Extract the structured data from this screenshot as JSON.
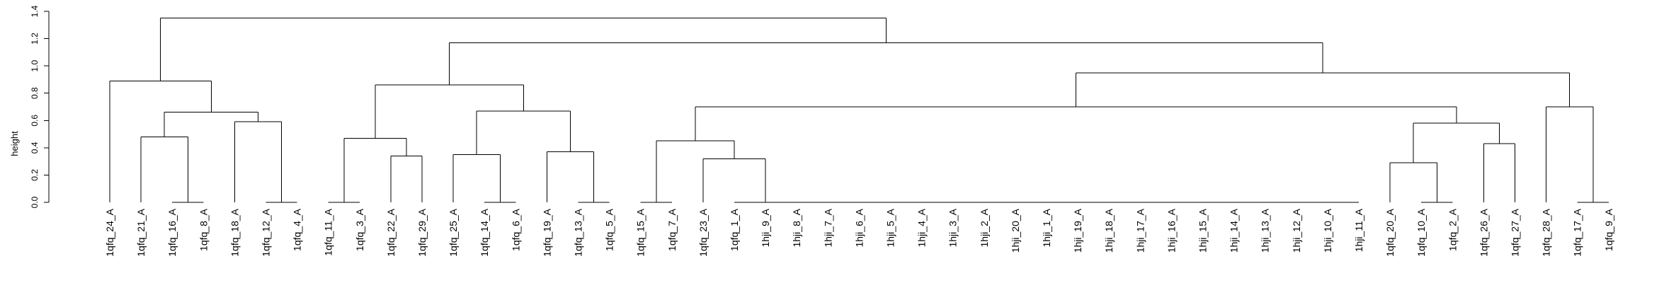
{
  "chart_data": {
    "type": "dendrogram",
    "title": "",
    "xlabel": "",
    "ylabel": "height",
    "ylim": [
      0,
      1.4
    ],
    "yticks": [
      "0.0",
      "0.2",
      "0.4",
      "0.6",
      "0.8",
      "1.0",
      "1.2",
      "1.4"
    ],
    "leaves": [
      "1qfq_24_A",
      "1qfq_21_A",
      "1qfq_16_A",
      "1qfq_8_A",
      "1qfq_18_A",
      "1qfq_12_A",
      "1qfq_4_A",
      "1qfq_11_A",
      "1qfq_3_A",
      "1qfq_22_A",
      "1qfq_29_A",
      "1qfq_25_A",
      "1qfq_14_A",
      "1qfq_6_A",
      "1qfq_19_A",
      "1qfq_13_A",
      "1qfq_5_A",
      "1qfq_15_A",
      "1qfq_7_A",
      "1qfq_23_A",
      "1qfq_1_A",
      "1hji_9_A",
      "1hji_8_A",
      "1hji_7_A",
      "1hji_6_A",
      "1hji_5_A",
      "1hji_4_A",
      "1hji_3_A",
      "1hji_2_A",
      "1hji_20_A",
      "1hji_1_A",
      "1hji_19_A",
      "1hji_18_A",
      "1hji_17_A",
      "1hji_16_A",
      "1hji_15_A",
      "1hji_14_A",
      "1hji_13_A",
      "1hji_12_A",
      "1hji_10_A",
      "1hji_11_A",
      "1qfq_20_A",
      "1qfq_10_A",
      "1qfq_2_A",
      "1qfq_26_A",
      "1qfq_27_A",
      "1qfq_28_A",
      "1qfq_17_A",
      "1qfq_9_A"
    ],
    "merges": [
      {
        "a": "1qfq_16_A",
        "b": "1qfq_8_A",
        "height": 0.0
      },
      {
        "a": "1qfq_21_A",
        "b": "M0",
        "height": 0.48
      },
      {
        "a": "1qfq_12_A",
        "b": "1qfq_4_A",
        "height": 0.0
      },
      {
        "a": "1qfq_18_A",
        "b": "M2",
        "height": 0.59
      },
      {
        "a": "M1",
        "b": "M3",
        "height": 0.66
      },
      {
        "a": "1qfq_24_A",
        "b": "M4",
        "height": 0.89
      },
      {
        "a": "1qfq_11_A",
        "b": "1qfq_3_A",
        "height": 0.0
      },
      {
        "a": "1qfq_22_A",
        "b": "1qfq_29_A",
        "height": 0.34
      },
      {
        "a": "M6",
        "b": "M7",
        "height": 0.47
      },
      {
        "a": "1qfq_14_A",
        "b": "1qfq_6_A",
        "height": 0.0
      },
      {
        "a": "1qfq_25_A",
        "b": "M9",
        "height": 0.35
      },
      {
        "a": "1qfq_13_A",
        "b": "1qfq_5_A",
        "height": 0.0
      },
      {
        "a": "1qfq_19_A",
        "b": "M11",
        "height": 0.37
      },
      {
        "a": "M10",
        "b": "M12",
        "height": 0.67
      },
      {
        "a": "M8",
        "b": "M13",
        "height": 0.86
      },
      {
        "a": "1qfq_15_A",
        "b": "1qfq_7_A",
        "height": 0.0
      },
      {
        "a": "1hji_11_A",
        "b": "1hji_10_A",
        "height": 0.0
      },
      {
        "a": "M16",
        "b": "1hji_12_A",
        "height": 0.0
      },
      {
        "a": "M17",
        "b": "1hji_13_A",
        "height": 0.0
      },
      {
        "a": "M18",
        "b": "1hji_14_A",
        "height": 0.0
      },
      {
        "a": "M19",
        "b": "1hji_15_A",
        "height": 0.0
      },
      {
        "a": "M20",
        "b": "1hji_16_A",
        "height": 0.0
      },
      {
        "a": "M21",
        "b": "1hji_17_A",
        "height": 0.0
      },
      {
        "a": "M22",
        "b": "1hji_18_A",
        "height": 0.0
      },
      {
        "a": "M23",
        "b": "1hji_19_A",
        "height": 0.0
      },
      {
        "a": "M24",
        "b": "1hji_1_A",
        "height": 0.0
      },
      {
        "a": "M25",
        "b": "1hji_20_A",
        "height": 0.0
      },
      {
        "a": "M26",
        "b": "1hji_2_A",
        "height": 0.0
      },
      {
        "a": "M27",
        "b": "1hji_3_A",
        "height": 0.0
      },
      {
        "a": "M28",
        "b": "1hji_4_A",
        "height": 0.0
      },
      {
        "a": "M29",
        "b": "1hji_5_A",
        "height": 0.0
      },
      {
        "a": "M30",
        "b": "1hji_6_A",
        "height": 0.0
      },
      {
        "a": "M31",
        "b": "1hji_7_A",
        "height": 0.0
      },
      {
        "a": "M32",
        "b": "1hji_8_A",
        "height": 0.0
      },
      {
        "a": "M33",
        "b": "1hji_9_A",
        "height": 0.0
      },
      {
        "a": "1qfq_1_A",
        "b": "M34",
        "height": 0.0
      },
      {
        "a": "1qfq_23_A",
        "b": "M35",
        "height": 0.32
      },
      {
        "a": "M15",
        "b": "M36",
        "height": 0.45
      },
      {
        "a": "1qfq_10_A",
        "b": "1qfq_2_A",
        "height": 0.0
      },
      {
        "a": "1qfq_20_A",
        "b": "M38",
        "height": 0.29
      },
      {
        "a": "1qfq_26_A",
        "b": "1qfq_27_A",
        "height": 0.43
      },
      {
        "a": "M39",
        "b": "M40",
        "height": 0.58
      },
      {
        "a": "M37",
        "b": "M41",
        "height": 0.7
      },
      {
        "a": "1qfq_17_A",
        "b": "1qfq_9_A",
        "height": 0.0
      },
      {
        "a": "1qfq_28_A",
        "b": "M43",
        "height": 0.7
      },
      {
        "a": "M42",
        "b": "M44",
        "height": 0.95
      },
      {
        "a": "M14",
        "b": "M45",
        "height": 1.17
      },
      {
        "a": "M5",
        "b": "M46",
        "height": 1.35
      }
    ]
  }
}
